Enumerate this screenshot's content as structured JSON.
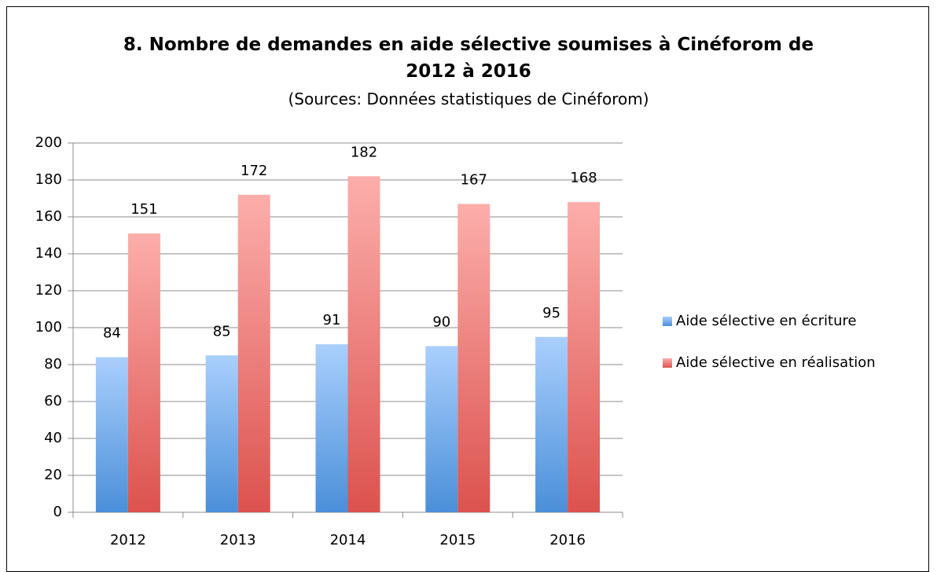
{
  "chart_data": {
    "type": "bar",
    "title": "8. Nombre de demandes en aide sélective soumises à Cinéforom de 2012 à 2016",
    "subtitle": "(Sources: Données statistiques de Cinéforom)",
    "categories": [
      "2012",
      "2013",
      "2014",
      "2015",
      "2016"
    ],
    "series": [
      {
        "name": "Aide sélective en écriture",
        "color": "#5b9be0",
        "values": [
          84,
          85,
          91,
          90,
          95
        ]
      },
      {
        "name": "Aide sélective en réalisation",
        "color": "#e0605c",
        "values": [
          151,
          172,
          182,
          167,
          168
        ]
      }
    ],
    "ylim": [
      0,
      200
    ],
    "yticks": [
      0,
      20,
      40,
      60,
      80,
      100,
      120,
      140,
      160,
      180,
      200
    ],
    "grid": true,
    "legend": "right"
  }
}
